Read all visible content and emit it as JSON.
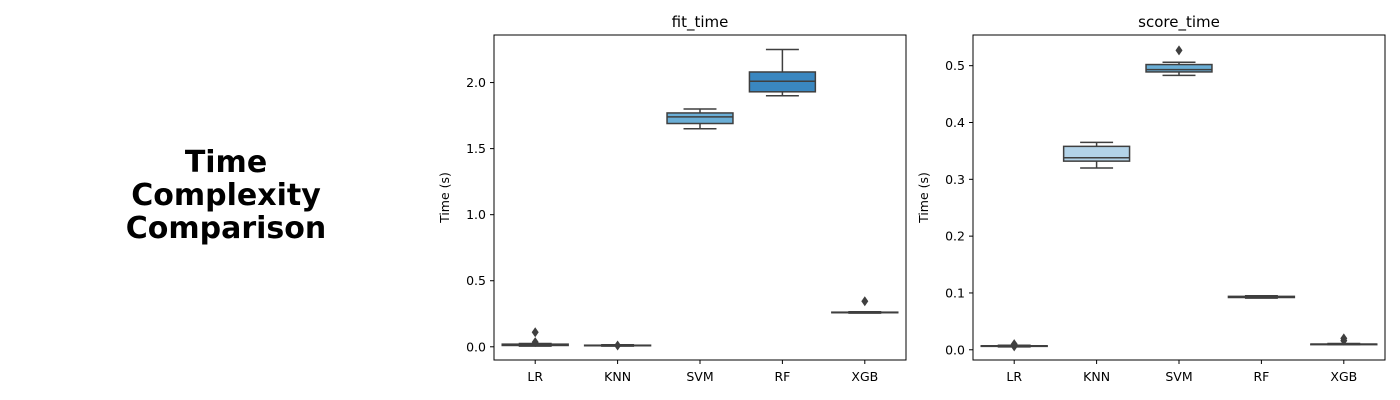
{
  "figure": {
    "title_lines": [
      "Time",
      "Complexity",
      "Comparison"
    ]
  },
  "colors": {
    "LR": "#e1edf8",
    "KNN": "#b3d3e8",
    "SVM": "#6aaed6",
    "RF": "#3a87c0",
    "XGB": "#1564aa",
    "box_edge": "#3f3f3f"
  },
  "chart_data": [
    {
      "type": "box",
      "title": "fit_time",
      "ylabel": "Time (s)",
      "ylim": [
        -0.1,
        2.36
      ],
      "yticks": [
        0.0,
        0.5,
        1.0,
        1.5,
        2.0
      ],
      "ytick_labels": [
        "0.0",
        "0.5",
        "1.0",
        "1.5",
        "2.0"
      ],
      "categories": [
        "LR",
        "KNN",
        "SVM",
        "RF",
        "XGB"
      ],
      "boxes": [
        {
          "min": 0.005,
          "q1": 0.01,
          "median": 0.015,
          "q3": 0.02,
          "max": 0.025,
          "outliers": [
            0.035,
            0.11
          ]
        },
        {
          "min": 0.005,
          "q1": 0.008,
          "median": 0.01,
          "q3": 0.012,
          "max": 0.015,
          "outliers": [
            0.01
          ]
        },
        {
          "min": 1.65,
          "q1": 1.69,
          "median": 1.74,
          "q3": 1.77,
          "max": 1.8,
          "outliers": []
        },
        {
          "min": 1.9,
          "q1": 1.93,
          "median": 2.01,
          "q3": 2.08,
          "max": 2.25,
          "outliers": []
        },
        {
          "min": 0.255,
          "q1": 0.258,
          "median": 0.26,
          "q3": 0.262,
          "max": 0.265,
          "outliers": [
            0.345
          ]
        }
      ]
    },
    {
      "type": "box",
      "title": "score_time",
      "ylabel": "Time (s)",
      "ylim": [
        -0.018,
        0.554
      ],
      "yticks": [
        0.0,
        0.1,
        0.2,
        0.3,
        0.4,
        0.5
      ],
      "ytick_labels": [
        "0.0",
        "0.1",
        "0.2",
        "0.3",
        "0.4",
        "0.5"
      ],
      "categories": [
        "LR",
        "KNN",
        "SVM",
        "RF",
        "XGB"
      ],
      "boxes": [
        {
          "min": 0.005,
          "q1": 0.006,
          "median": 0.007,
          "q3": 0.007,
          "max": 0.008,
          "outliers": [
            0.006,
            0.01
          ]
        },
        {
          "min": 0.32,
          "q1": 0.332,
          "median": 0.338,
          "q3": 0.358,
          "max": 0.365,
          "outliers": []
        },
        {
          "min": 0.483,
          "q1": 0.489,
          "median": 0.493,
          "q3": 0.502,
          "max": 0.506,
          "outliers": [
            0.527
          ]
        },
        {
          "min": 0.091,
          "q1": 0.092,
          "median": 0.093,
          "q3": 0.094,
          "max": 0.095,
          "outliers": []
        },
        {
          "min": 0.009,
          "q1": 0.009,
          "median": 0.01,
          "q3": 0.01,
          "max": 0.011,
          "outliers": [
            0.016,
            0.02
          ]
        }
      ]
    }
  ]
}
